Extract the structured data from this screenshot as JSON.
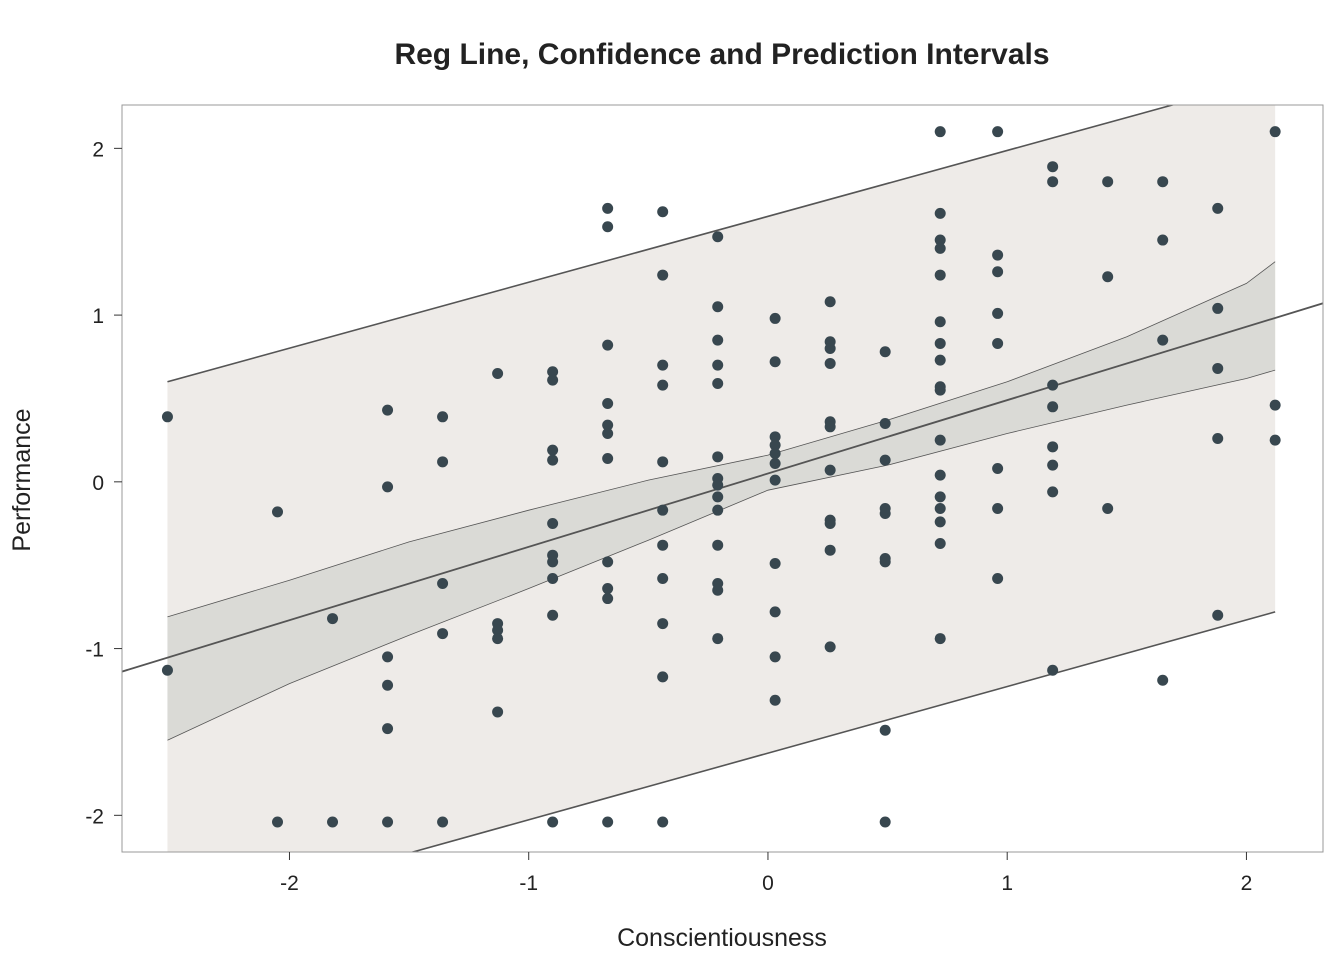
{
  "chart_data": {
    "type": "scatter",
    "title": "Reg Line, Confidence and Prediction Intervals",
    "xlabel": "Conscientiousness",
    "ylabel": "Performance",
    "xlim": [
      -2.7,
      2.32
    ],
    "ylim": [
      -2.22,
      2.26
    ],
    "xticks": [
      -2,
      -1,
      0,
      1,
      2
    ],
    "yticks": [
      -2,
      -1,
      0,
      1,
      2
    ],
    "xtick_labels": [
      "-2",
      "-1",
      "0",
      "1",
      "2"
    ],
    "ytick_labels": [
      "-2",
      "-1",
      "0",
      "1",
      "2"
    ],
    "regression": {
      "intercept": 0.05,
      "slope": 0.44,
      "x_range": [
        -2.7,
        2.32
      ]
    },
    "prediction_interval": {
      "x": [
        -2.51,
        2.12
      ],
      "upper": [
        0.6,
        2.43
      ],
      "lower": [
        -2.63,
        -0.78
      ]
    },
    "confidence_interval": {
      "x": [
        -2.51,
        -2.0,
        -1.5,
        -1.0,
        -0.5,
        0.0,
        0.5,
        1.0,
        1.5,
        2.0,
        2.12
      ],
      "upper": [
        -0.81,
        -0.59,
        -0.36,
        -0.17,
        0.01,
        0.16,
        0.37,
        0.6,
        0.87,
        1.19,
        1.32
      ],
      "lower": [
        -1.55,
        -1.21,
        -0.92,
        -0.64,
        -0.35,
        -0.05,
        0.1,
        0.29,
        0.46,
        0.62,
        0.67
      ]
    },
    "series": [
      {
        "name": "observations",
        "points": [
          [
            -2.51,
            0.39
          ],
          [
            -2.51,
            -1.13
          ],
          [
            -2.05,
            -0.18
          ],
          [
            -2.05,
            -2.04
          ],
          [
            -1.82,
            -0.82
          ],
          [
            -1.82,
            -2.04
          ],
          [
            -1.59,
            0.43
          ],
          [
            -1.59,
            -0.03
          ],
          [
            -1.59,
            -1.05
          ],
          [
            -1.59,
            -1.22
          ],
          [
            -1.59,
            -1.48
          ],
          [
            -1.59,
            -2.04
          ],
          [
            -1.36,
            0.39
          ],
          [
            -1.36,
            0.12
          ],
          [
            -1.36,
            -0.61
          ],
          [
            -1.36,
            -0.91
          ],
          [
            -1.36,
            -2.04
          ],
          [
            -1.13,
            0.65
          ],
          [
            -1.13,
            -0.85
          ],
          [
            -1.13,
            -0.89
          ],
          [
            -1.13,
            -0.94
          ],
          [
            -1.13,
            -1.38
          ],
          [
            -0.9,
            0.66
          ],
          [
            -0.9,
            0.61
          ],
          [
            -0.9,
            0.19
          ],
          [
            -0.9,
            0.13
          ],
          [
            -0.9,
            -0.25
          ],
          [
            -0.9,
            -0.44
          ],
          [
            -0.9,
            -0.48
          ],
          [
            -0.9,
            -0.58
          ],
          [
            -0.9,
            -0.8
          ],
          [
            -0.9,
            -2.04
          ],
          [
            -0.67,
            1.64
          ],
          [
            -0.67,
            1.53
          ],
          [
            -0.67,
            0.82
          ],
          [
            -0.67,
            0.47
          ],
          [
            -0.67,
            0.34
          ],
          [
            -0.67,
            0.29
          ],
          [
            -0.67,
            0.14
          ],
          [
            -0.67,
            -0.48
          ],
          [
            -0.67,
            -0.64
          ],
          [
            -0.67,
            -0.7
          ],
          [
            -0.67,
            -2.04
          ],
          [
            -0.44,
            1.62
          ],
          [
            -0.44,
            1.24
          ],
          [
            -0.44,
            0.7
          ],
          [
            -0.44,
            0.58
          ],
          [
            -0.44,
            0.12
          ],
          [
            -0.44,
            -0.17
          ],
          [
            -0.44,
            -0.38
          ],
          [
            -0.44,
            -0.58
          ],
          [
            -0.44,
            -0.85
          ],
          [
            -0.44,
            -1.17
          ],
          [
            -0.44,
            -2.04
          ],
          [
            -0.21,
            1.47
          ],
          [
            -0.21,
            1.05
          ],
          [
            -0.21,
            0.85
          ],
          [
            -0.21,
            0.7
          ],
          [
            -0.21,
            0.59
          ],
          [
            -0.21,
            0.15
          ],
          [
            -0.21,
            0.02
          ],
          [
            -0.21,
            -0.02
          ],
          [
            -0.21,
            -0.09
          ],
          [
            -0.21,
            -0.17
          ],
          [
            -0.21,
            -0.38
          ],
          [
            -0.21,
            -0.61
          ],
          [
            -0.21,
            -0.65
          ],
          [
            -0.21,
            -0.94
          ],
          [
            0.03,
            0.98
          ],
          [
            0.03,
            0.72
          ],
          [
            0.03,
            0.27
          ],
          [
            0.03,
            0.22
          ],
          [
            0.03,
            0.17
          ],
          [
            0.03,
            0.11
          ],
          [
            0.03,
            0.01
          ],
          [
            0.03,
            -0.49
          ],
          [
            0.03,
            -0.78
          ],
          [
            0.03,
            -1.05
          ],
          [
            0.03,
            -1.31
          ],
          [
            0.26,
            1.08
          ],
          [
            0.26,
            0.84
          ],
          [
            0.26,
            0.8
          ],
          [
            0.26,
            0.71
          ],
          [
            0.26,
            0.36
          ],
          [
            0.26,
            0.33
          ],
          [
            0.26,
            0.07
          ],
          [
            0.26,
            -0.23
          ],
          [
            0.26,
            -0.25
          ],
          [
            0.26,
            -0.41
          ],
          [
            0.26,
            -0.99
          ],
          [
            0.49,
            0.78
          ],
          [
            0.49,
            0.35
          ],
          [
            0.49,
            0.13
          ],
          [
            0.49,
            -0.16
          ],
          [
            0.49,
            -0.19
          ],
          [
            0.49,
            -0.46
          ],
          [
            0.49,
            -0.48
          ],
          [
            0.49,
            -1.49
          ],
          [
            0.49,
            -2.04
          ],
          [
            0.72,
            2.1
          ],
          [
            0.72,
            1.61
          ],
          [
            0.72,
            1.45
          ],
          [
            0.72,
            1.4
          ],
          [
            0.72,
            1.24
          ],
          [
            0.72,
            0.96
          ],
          [
            0.72,
            0.83
          ],
          [
            0.72,
            0.73
          ],
          [
            0.72,
            0.57
          ],
          [
            0.72,
            0.55
          ],
          [
            0.72,
            0.25
          ],
          [
            0.72,
            0.04
          ],
          [
            0.72,
            -0.09
          ],
          [
            0.72,
            -0.16
          ],
          [
            0.72,
            -0.24
          ],
          [
            0.72,
            -0.37
          ],
          [
            0.72,
            -0.94
          ],
          [
            0.96,
            2.1
          ],
          [
            0.96,
            1.36
          ],
          [
            0.96,
            1.26
          ],
          [
            0.96,
            1.01
          ],
          [
            0.96,
            0.83
          ],
          [
            0.96,
            0.08
          ],
          [
            0.96,
            -0.16
          ],
          [
            0.96,
            -0.58
          ],
          [
            1.19,
            1.89
          ],
          [
            1.19,
            1.8
          ],
          [
            1.19,
            0.58
          ],
          [
            1.19,
            0.45
          ],
          [
            1.19,
            0.21
          ],
          [
            1.19,
            0.1
          ],
          [
            1.19,
            -0.06
          ],
          [
            1.19,
            -1.13
          ],
          [
            1.42,
            1.8
          ],
          [
            1.42,
            1.23
          ],
          [
            1.42,
            -0.16
          ],
          [
            1.65,
            1.8
          ],
          [
            1.65,
            1.45
          ],
          [
            1.65,
            0.85
          ],
          [
            1.65,
            -1.19
          ],
          [
            1.88,
            1.64
          ],
          [
            1.88,
            1.04
          ],
          [
            1.88,
            0.68
          ],
          [
            1.88,
            0.26
          ],
          [
            1.88,
            -0.8
          ],
          [
            2.12,
            2.1
          ],
          [
            2.12,
            0.46
          ],
          [
            2.12,
            0.25
          ]
        ]
      }
    ],
    "colors": {
      "point": "#38474f",
      "prediction_band": "#eeebe8",
      "confidence_band": "#dadad6",
      "line": "#555555",
      "band_edge": "#555555",
      "frame": "#999999"
    }
  }
}
